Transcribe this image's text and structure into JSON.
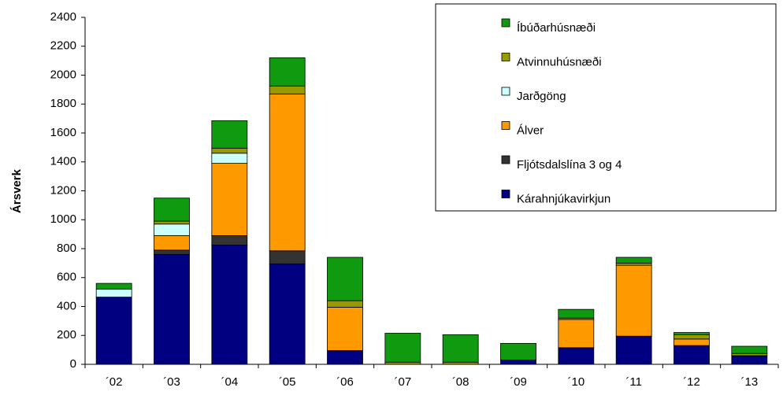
{
  "chart_data": {
    "type": "stacked_bar",
    "y_label": "Ársverk",
    "categories": [
      "´02",
      "´03",
      "´04",
      "´05",
      "´06",
      "´07",
      "´08",
      "´09",
      "´10",
      "´11",
      "´12",
      "´13"
    ],
    "series": [
      {
        "name": "Kárahnjúkavirkjun",
        "color": "#000080",
        "values": [
          465,
          760,
          825,
          695,
          95,
          0,
          0,
          30,
          115,
          195,
          130,
          60
        ]
      },
      {
        "name": "Fljótsdalslína 3 og 4",
        "color": "#333333",
        "values": [
          0,
          30,
          65,
          90,
          0,
          0,
          0,
          0,
          0,
          0,
          0,
          0
        ]
      },
      {
        "name": "Álver",
        "color": "#ff9900",
        "values": [
          0,
          100,
          500,
          1085,
          300,
          0,
          0,
          0,
          195,
          490,
          45,
          0
        ]
      },
      {
        "name": "Jarðgöng",
        "color": "#ccffff",
        "values": [
          55,
          80,
          70,
          0,
          0,
          0,
          0,
          0,
          0,
          0,
          0,
          0
        ]
      },
      {
        "name": "Atvinnuhúsnæði",
        "color": "#999900",
        "values": [
          0,
          20,
          35,
          55,
          45,
          15,
          15,
          0,
          10,
          15,
          30,
          15
        ]
      },
      {
        "name": "Íbúðarhúsnæði",
        "color": "#109a10",
        "values": [
          40,
          160,
          190,
          195,
          300,
          200,
          190,
          115,
          60,
          40,
          15,
          50
        ]
      }
    ],
    "ylim": [
      0,
      2400
    ],
    "yticks": [
      0,
      200,
      400,
      600,
      800,
      1000,
      1200,
      1400,
      1600,
      1800,
      2000,
      2200,
      2400
    ],
    "legend": "top-right"
  }
}
